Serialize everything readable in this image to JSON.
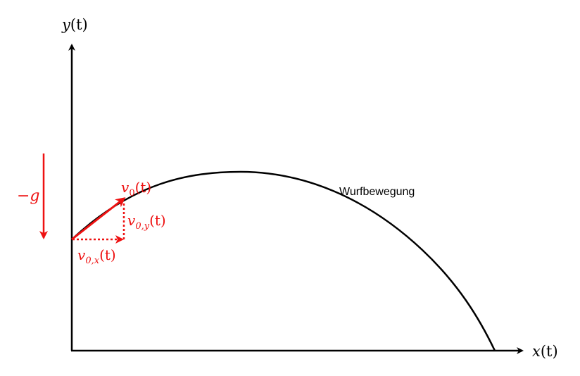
{
  "axes": {
    "y_label_var": "y",
    "y_label_arg": "(t)",
    "x_label_var": "x",
    "x_label_arg": "(t)"
  },
  "trajectory": {
    "label": "Wurfbewegung"
  },
  "vectors": {
    "v0": {
      "var": "v",
      "sub": "0",
      "arg": "(t)"
    },
    "v0x": {
      "var": "v",
      "sub": "0,x",
      "arg": "(t)"
    },
    "v0y": {
      "var": "v",
      "sub": "0,y",
      "arg": "(t)"
    }
  },
  "gravity": {
    "label": "−g"
  },
  "colors": {
    "axis": "#000000",
    "curve": "#000000",
    "vector": "#ee1111"
  }
}
